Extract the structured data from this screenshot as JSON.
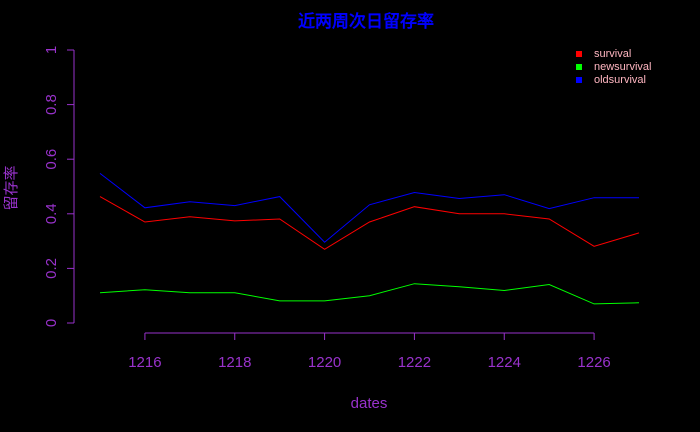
{
  "chart_data": {
    "type": "line",
    "title": "近两周次日留存率",
    "xlabel": "dates",
    "ylabel": "留存率",
    "x": [
      1215,
      1216,
      1217,
      1218,
      1219,
      1220,
      1221,
      1222,
      1223,
      1224,
      1225,
      1226,
      1227
    ],
    "xticks": [
      "1216",
      "1218",
      "1220",
      "1222",
      "1224",
      "1226"
    ],
    "yticks": [
      "0",
      "0.2",
      "0.4",
      "0.6",
      "0.8",
      "1"
    ],
    "xlim": [
      1215,
      1227
    ],
    "ylim": [
      0,
      1
    ],
    "grid": false,
    "legend_position": "top-right",
    "series": [
      {
        "name": "survival",
        "color": "#ff0000",
        "values": [
          0.463,
          0.37,
          0.389,
          0.374,
          0.381,
          0.27,
          0.37,
          0.426,
          0.4,
          0.4,
          0.381,
          0.281,
          0.33
        ]
      },
      {
        "name": "newsurvival",
        "color": "#00ff00",
        "values": [
          0.111,
          0.122,
          0.111,
          0.111,
          0.081,
          0.081,
          0.1,
          0.144,
          0.133,
          0.119,
          0.141,
          0.07,
          0.074
        ]
      },
      {
        "name": "oldsurvival",
        "color": "#0000ff",
        "values": [
          0.548,
          0.422,
          0.444,
          0.43,
          0.463,
          0.296,
          0.433,
          0.478,
          0.456,
          0.47,
          0.419,
          0.459,
          0.459
        ]
      }
    ]
  },
  "colors": {
    "background": "#000000",
    "title": "#0000ff",
    "axis": "#9932cc",
    "legend_text": "#ffb6c1"
  }
}
